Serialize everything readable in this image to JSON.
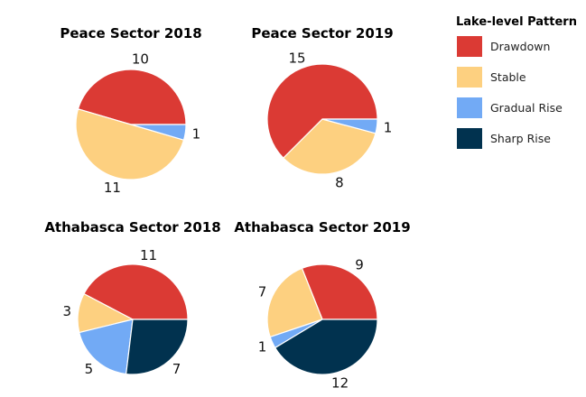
{
  "chart_data": [
    {
      "type": "pie",
      "title": "Peace Sector 2018",
      "categories": [
        "Drawdown",
        "Stable",
        "Gradual Rise"
      ],
      "values": [
        10,
        11,
        1
      ]
    },
    {
      "type": "pie",
      "title": "Peace Sector 2019",
      "categories": [
        "Drawdown",
        "Stable",
        "Gradual Rise"
      ],
      "values": [
        15,
        8,
        1
      ]
    },
    {
      "type": "pie",
      "title": "Athabasca Sector 2018",
      "categories": [
        "Drawdown",
        "Stable",
        "Gradual Rise",
        "Sharp Rise"
      ],
      "values": [
        11,
        3,
        5,
        7
      ]
    },
    {
      "type": "pie",
      "title": "Athabasca Sector 2019",
      "categories": [
        "Drawdown",
        "Stable",
        "Gradual Rise",
        "Sharp Rise"
      ],
      "values": [
        9,
        7,
        1,
        12
      ]
    }
  ],
  "legend": {
    "title": "Lake-level Pattern",
    "placement": "right",
    "items": [
      {
        "label": "Drawdown",
        "color": "#db3a34"
      },
      {
        "label": "Stable",
        "color": "#fdd080"
      },
      {
        "label": "Gradual Rise",
        "color": "#72aaf5"
      },
      {
        "label": "Sharp Rise",
        "color": "#01324f"
      }
    ]
  }
}
